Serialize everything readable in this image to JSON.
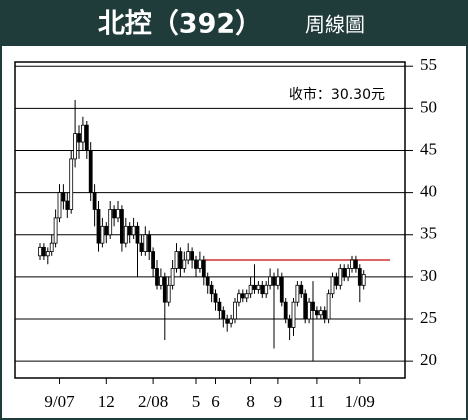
{
  "chart_data": {
    "type": "candlestick",
    "title": "北控（392）",
    "subtitle": "周線圖",
    "annotation": "收市：30.30元",
    "categories": [
      null,
      null,
      null,
      null,
      null,
      "9/07",
      null,
      null,
      null,
      null,
      null,
      null,
      null,
      null,
      null,
      null,
      null,
      "12",
      null,
      null,
      null,
      null,
      null,
      null,
      null,
      null,
      null,
      null,
      null,
      "2/08",
      null,
      null,
      null,
      null,
      null,
      null,
      null,
      null,
      null,
      null,
      "5",
      null,
      null,
      null,
      null,
      "6",
      null,
      null,
      null,
      null,
      null,
      null,
      null,
      null,
      "8",
      null,
      null,
      null,
      null,
      null,
      null,
      "9",
      null,
      null,
      null,
      null,
      null,
      null,
      null,
      null,
      null,
      "11",
      null,
      null,
      null,
      null,
      null,
      null,
      null,
      null,
      null,
      null,
      "1/09",
      null
    ],
    "open": [
      32.5,
      33.5,
      32.5,
      33,
      34,
      37,
      40,
      39,
      38,
      44,
      47,
      46,
      48,
      45,
      40,
      38,
      34,
      36,
      35,
      38,
      37,
      38,
      34,
      36,
      35,
      36,
      34,
      33,
      35,
      33,
      31,
      29,
      30,
      27,
      29,
      31,
      33,
      31,
      32,
      33,
      32,
      31,
      32,
      30,
      29,
      28,
      27,
      26,
      25,
      24.5,
      25,
      27,
      28,
      27.5,
      28,
      29,
      28.5,
      29,
      28,
      29,
      30,
      29,
      30,
      27,
      25,
      24,
      27,
      29,
      28,
      25,
      27,
      26,
      25.5,
      26,
      25,
      28,
      30,
      29,
      31,
      30,
      31,
      32,
      31,
      29
    ],
    "high": [
      34,
      34,
      33.5,
      35,
      38,
      41,
      41,
      40,
      45,
      51,
      48,
      49,
      48.5,
      46,
      41,
      39,
      37,
      36.5,
      39,
      38.5,
      39,
      38.5,
      37,
      36.5,
      37,
      36.5,
      35,
      36,
      35.5,
      33.5,
      32,
      31,
      30.5,
      30,
      32,
      34,
      33.5,
      33,
      34,
      33.5,
      32.5,
      33,
      32.5,
      30.5,
      29.5,
      28.5,
      27.5,
      26.5,
      25.5,
      25.5,
      27.5,
      28.5,
      28.5,
      28.5,
      30,
      31.5,
      29.5,
      29.5,
      29.5,
      31,
      30.5,
      31,
      30.5,
      27.5,
      25.5,
      27.5,
      29.5,
      29.5,
      28.5,
      27.5,
      29.5,
      26.5,
      26.5,
      26.5,
      28.5,
      30.5,
      30.5,
      31.5,
      31.5,
      31.5,
      32.5,
      32.5,
      31.5,
      30.8
    ],
    "low": [
      32,
      32,
      31.5,
      32.5,
      33.5,
      36.5,
      38,
      37,
      37.5,
      43,
      44,
      45,
      44,
      39,
      36,
      33,
      33.5,
      34,
      34.5,
      36,
      36.5,
      33,
      33.5,
      34,
      34.5,
      30,
      32.5,
      32.5,
      32,
      30,
      28.5,
      28.5,
      22.5,
      26.5,
      28.5,
      30.5,
      30,
      30.5,
      31.5,
      31,
      30,
      30.5,
      29,
      28,
      27,
      26,
      25,
      24,
      23.5,
      24,
      24.5,
      26.5,
      27,
      27,
      27.5,
      28,
      28,
      27.5,
      27.5,
      28.5,
      21.5,
      28.5,
      26.5,
      24.5,
      22.5,
      23,
      26.5,
      27.5,
      24.5,
      24.5,
      20,
      25,
      25,
      24.5,
      24.5,
      27.5,
      28.5,
      28.5,
      29.5,
      29.5,
      30.5,
      30.5,
      27,
      28.5
    ],
    "close": [
      33.5,
      32.5,
      33,
      34,
      37,
      40,
      39,
      38,
      44,
      47,
      46,
      48,
      45,
      40,
      38,
      34,
      36,
      35,
      38,
      37,
      38,
      34,
      36,
      35,
      36,
      34,
      33,
      35,
      33,
      31,
      29,
      30,
      27,
      29,
      31,
      33,
      31,
      32,
      33,
      32,
      31,
      32,
      30,
      29,
      28,
      27,
      26,
      25,
      24.5,
      25,
      27,
      28,
      27.5,
      28,
      29,
      28.5,
      29,
      28,
      29,
      30,
      29,
      30,
      27,
      25,
      24,
      27,
      29,
      28,
      25,
      27,
      26,
      25.5,
      26,
      25,
      28,
      30,
      29,
      31,
      30,
      31,
      32,
      31,
      29,
      30.3
    ],
    "ylim": [
      18,
      55.5
    ],
    "yticks": [
      20,
      25,
      30,
      35,
      40,
      45,
      50,
      55
    ],
    "reference_line": {
      "value": 32,
      "color": "#d03030"
    },
    "grid": true,
    "color": "#000000"
  }
}
